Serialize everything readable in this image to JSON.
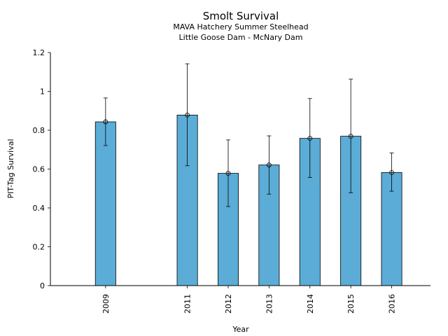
{
  "chart_data": {
    "type": "bar",
    "title": "Smolt Survival",
    "subtitle_lines": [
      "MAVA Hatchery Summer Steelhead",
      "Little Goose Dam - McNary Dam"
    ],
    "xlabel": "Year",
    "ylabel": "PIT-Tag Survival",
    "x": [
      2009,
      2011,
      2012,
      2013,
      2014,
      2015,
      2016
    ],
    "categories": [
      "2009",
      "2011",
      "2012",
      "2013",
      "2014",
      "2015",
      "2016"
    ],
    "values": [
      0.843,
      0.878,
      0.578,
      0.621,
      0.758,
      0.769,
      0.582
    ],
    "error_low": [
      0.721,
      0.617,
      0.407,
      0.471,
      0.557,
      0.478,
      0.486
    ],
    "error_high": [
      0.966,
      1.142,
      0.75,
      0.771,
      0.963,
      1.063,
      0.683
    ],
    "ylim": [
      0,
      1.2
    ],
    "xlim": [
      2007.65,
      2016.95
    ],
    "yticks": [
      0,
      0.2,
      0.4,
      0.6,
      0.8,
      1,
      1.2
    ],
    "ytick_labels": [
      "0",
      "0.2",
      "0.4",
      "0.6",
      "0.8",
      "1",
      "1.2"
    ],
    "grid": false,
    "colors": {
      "bar": "#5bacd6",
      "edge": "#000000"
    }
  }
}
